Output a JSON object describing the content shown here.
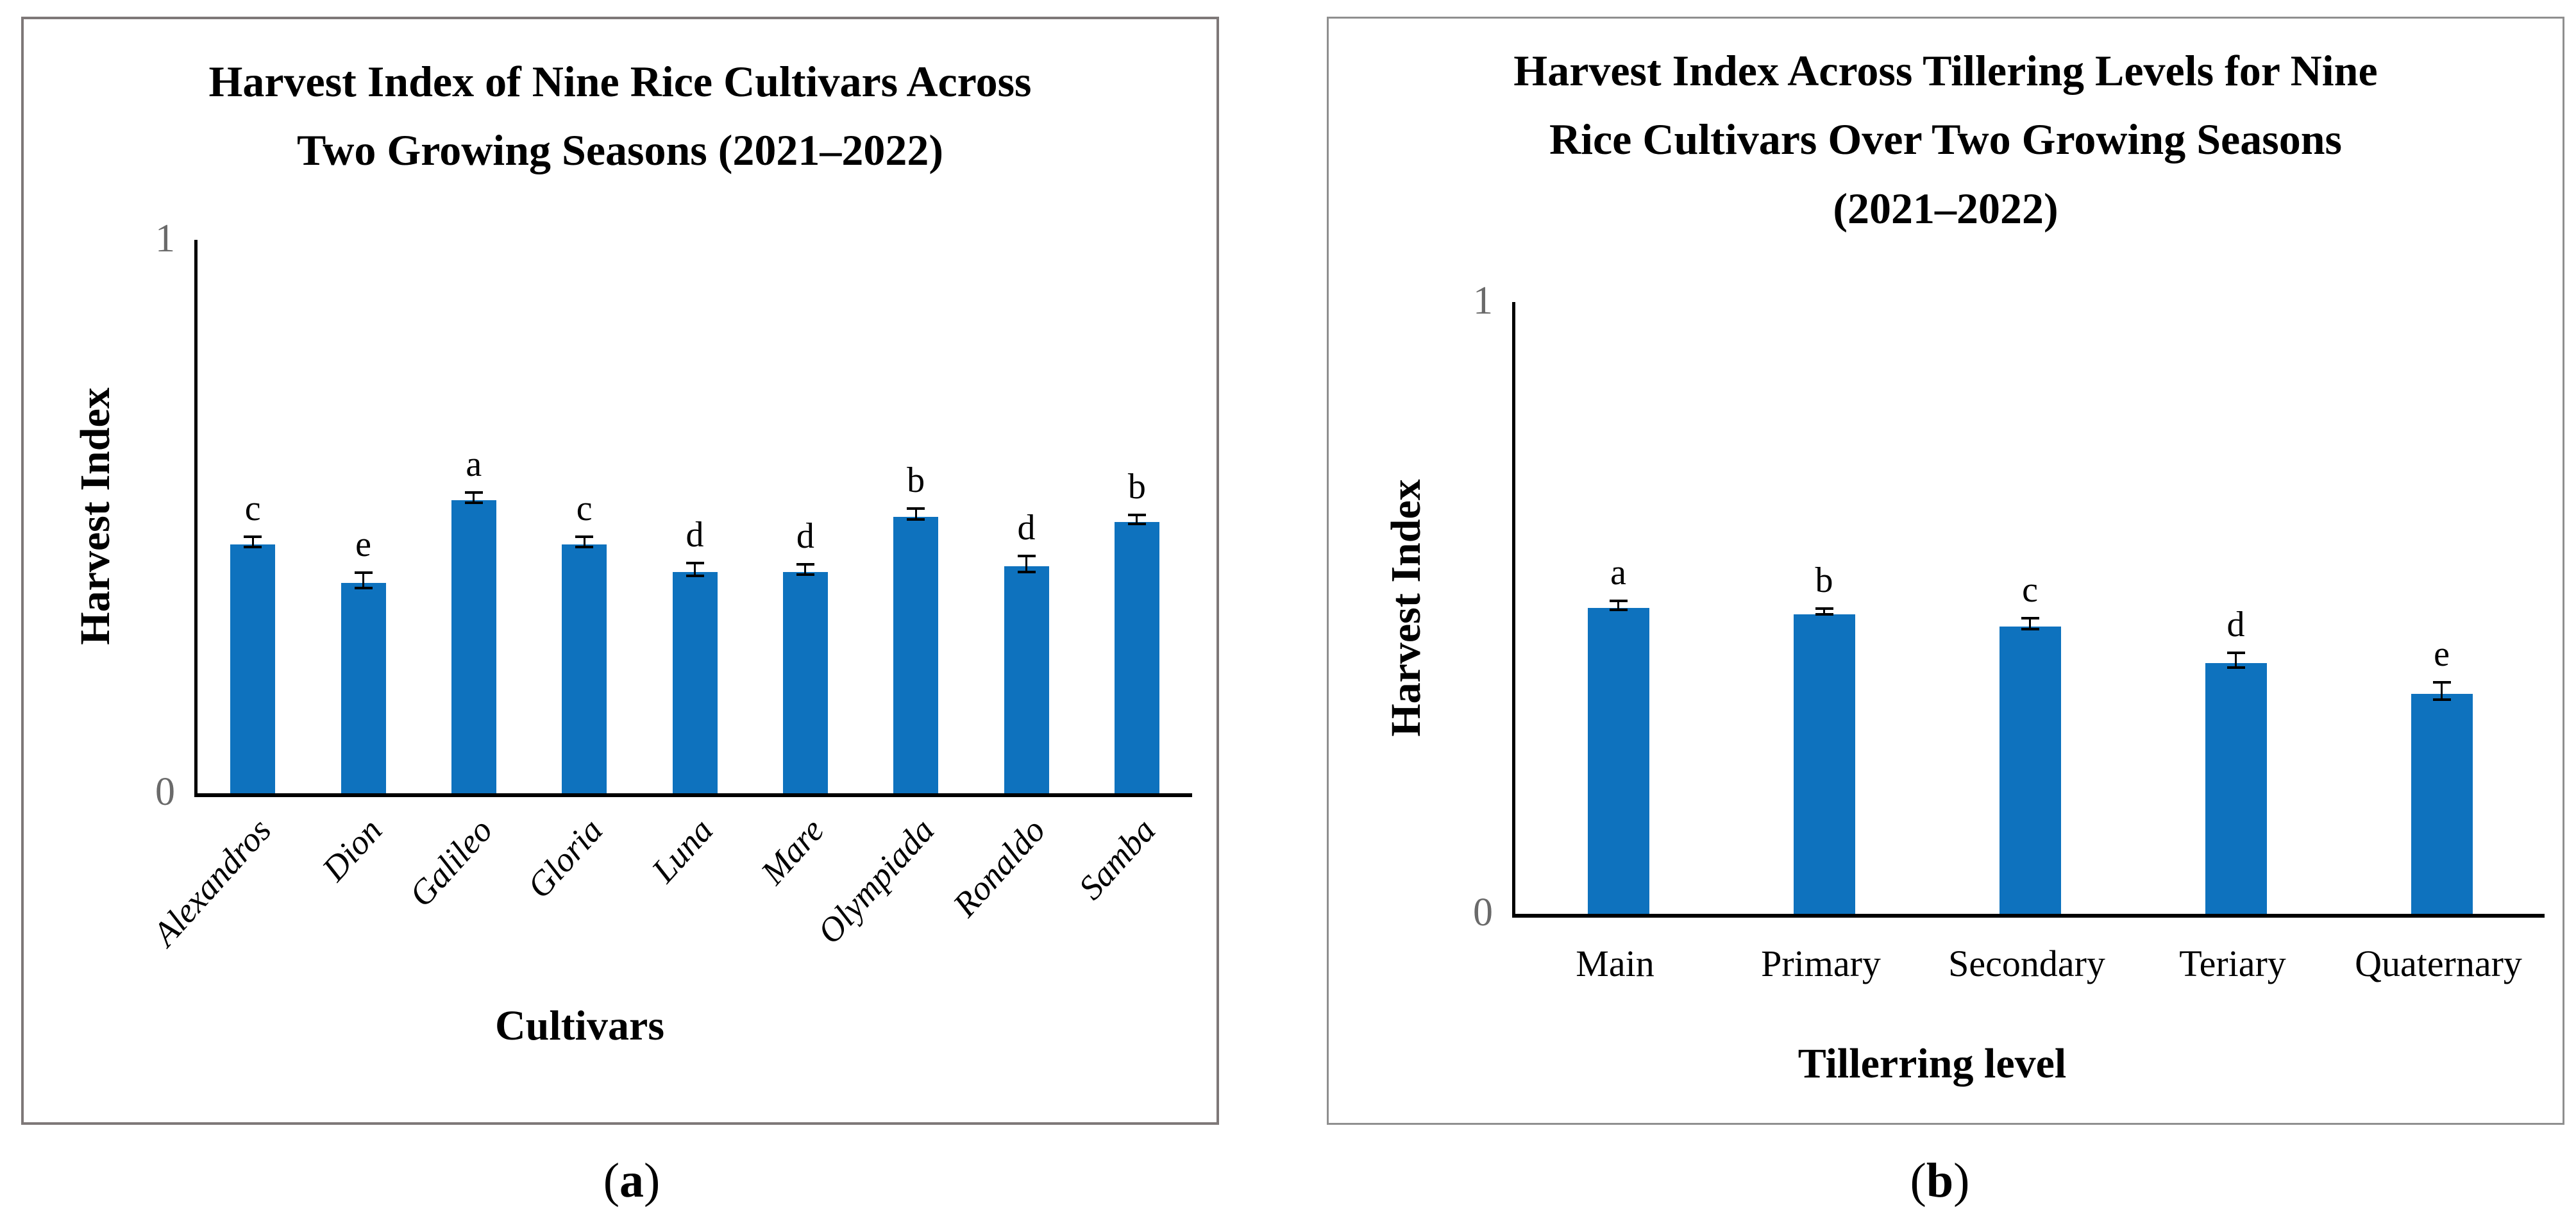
{
  "captions": {
    "paren_open": "(",
    "paren_close": ")",
    "a_letter": "a",
    "b_letter": "b"
  },
  "chart_data": [
    {
      "panel": "a",
      "type": "bar",
      "title": "Harvest Index of Nine Rice Cultivars Across Two Growing Seasons (2021–2022)",
      "title_lines": [
        "Harvest Index of Nine Rice Cultivars Across",
        "Two Growing Seasons (2021–2022)"
      ],
      "xlabel": "Cultivars",
      "ylabel": "Harvest Index",
      "categories": [
        "Alexandros",
        "Dion",
        "Galileo",
        "Gloria",
        "Luna",
        "Mare",
        "Olympiada",
        "Ronaldo",
        "Samba"
      ],
      "values": [
        0.45,
        0.38,
        0.53,
        0.45,
        0.4,
        0.4,
        0.5,
        0.41,
        0.49
      ],
      "errors": [
        0.007,
        0.012,
        0.007,
        0.007,
        0.009,
        0.007,
        0.008,
        0.012,
        0.006
      ],
      "sig_letters": [
        "c",
        "e",
        "a",
        "c",
        "d",
        "d",
        "b",
        "d",
        "b"
      ],
      "ylim": [
        0,
        1
      ],
      "ytick_labels": [
        "1",
        "0"
      ],
      "grid": false,
      "legend": false,
      "bar_color": "#0E72BE",
      "tick_label_color": "#6A6A6A",
      "axis_color": "#000000"
    },
    {
      "panel": "b",
      "type": "bar",
      "title": "Harvest Index Across Tillering Levels for Nine Rice Cultivars Over Two Growing Seasons (2021–2022)",
      "title_lines": [
        "Harvest Index Across Tillering Levels for Nine",
        "Rice Cultivars Over Two Growing Seasons",
        "(2021–2022)"
      ],
      "xlabel": "Tillerring level",
      "ylabel": "Harvest Index",
      "categories": [
        "Main",
        "Primary",
        "Secondary",
        "Teriary",
        "Quaternary"
      ],
      "values": [
        0.5,
        0.49,
        0.47,
        0.41,
        0.36
      ],
      "errors": [
        0.005,
        0.003,
        0.007,
        0.01,
        0.012
      ],
      "sig_letters": [
        "a",
        "b",
        "c",
        "d",
        "e"
      ],
      "ylim": [
        0,
        1
      ],
      "ytick_labels": [
        "1",
        "0"
      ],
      "grid": false,
      "legend": false,
      "bar_color": "#0E72BE",
      "tick_label_color": "#6A6A6A",
      "axis_color": "#000000"
    }
  ]
}
